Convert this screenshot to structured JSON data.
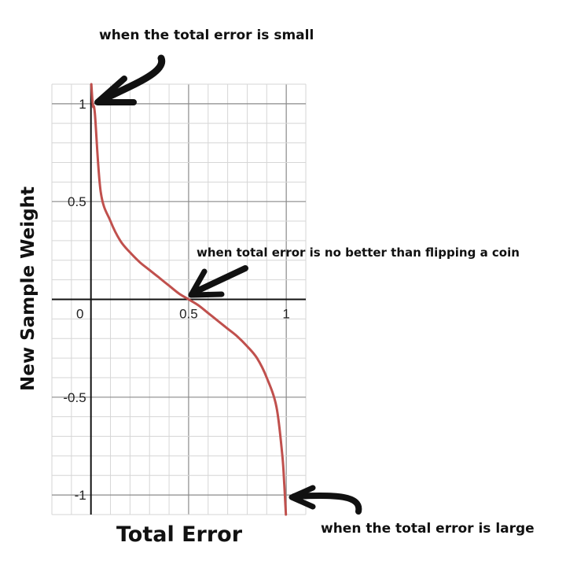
{
  "chart_data": {
    "type": "line",
    "xlabel": "Total Error",
    "ylabel": "New Sample Weight",
    "xlim": [
      -0.2,
      1.1
    ],
    "ylim": [
      -1.1,
      1.1
    ],
    "x_ticks": [
      "0",
      "0.5",
      "1"
    ],
    "y_ticks": [
      "1",
      "0.5",
      "-0.5",
      "-1"
    ],
    "x_tick_values": [
      0,
      0.5,
      1
    ],
    "y_tick_values": [
      1,
      0.5,
      -0.5,
      -1
    ],
    "grid": true,
    "line_color": "#c0504d",
    "x": [
      0.002,
      0.01,
      0.02,
      0.05,
      0.1,
      0.15,
      0.2,
      0.25,
      0.3,
      0.35,
      0.4,
      0.45,
      0.5,
      0.55,
      0.6,
      0.65,
      0.7,
      0.75,
      0.8,
      0.85,
      0.9,
      0.95,
      0.98,
      0.99,
      0.998
    ],
    "y": [
      1.1,
      0.99,
      0.95,
      0.55,
      0.4,
      0.3,
      0.24,
      0.19,
      0.15,
      0.11,
      0.07,
      0.03,
      0.0,
      -0.03,
      -0.07,
      -0.11,
      -0.15,
      -0.19,
      -0.24,
      -0.3,
      -0.4,
      -0.55,
      -0.8,
      -0.95,
      -1.1
    ],
    "annotations": [
      {
        "text": "when the total error is small"
      },
      {
        "text": "when total error is no better than flipping a coin"
      },
      {
        "text": "when the total error is large"
      }
    ]
  }
}
